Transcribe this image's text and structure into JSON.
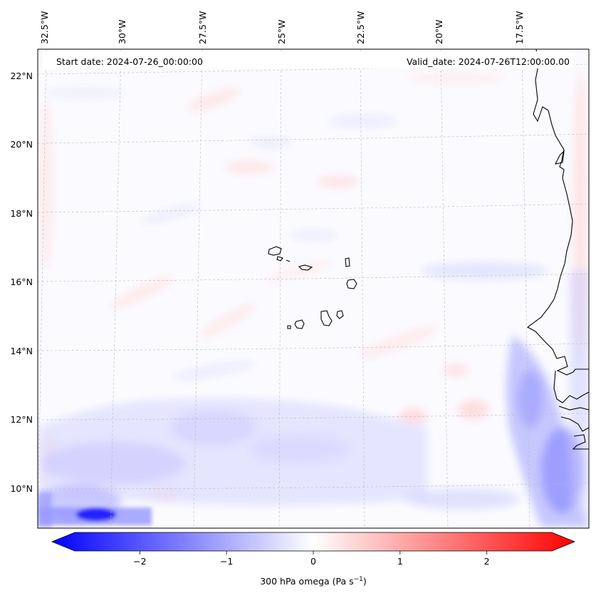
{
  "map": {
    "header": {
      "start_date": "Start date: 2024-07-26_00:00:00",
      "valid_date": "Valid_date: 2024-07-26T12:00:00.00"
    },
    "lon_labels": [
      "32.5°W",
      "30°W",
      "27.5°W",
      "25°W",
      "22.5°W",
      "20°W",
      "17.5°W"
    ],
    "lat_labels": [
      "22°N",
      "20°N",
      "18°N",
      "16°N",
      "14°N",
      "12°N",
      "10°N"
    ],
    "field": {
      "variable_label": "300 hPa omega (Pa s",
      "unit_exponent": "−1",
      "unit_close": ")",
      "negative_color": "#0000ff",
      "zero_color": "#ffffff",
      "positive_color": "#ff0000"
    }
  },
  "colorbar": {
    "ticks": [
      "−2",
      "−1",
      "0",
      "1",
      "2"
    ],
    "tick_values": [
      -2,
      -1,
      0,
      1,
      2
    ],
    "vmin": -2.75,
    "vmax": 2.75
  }
}
